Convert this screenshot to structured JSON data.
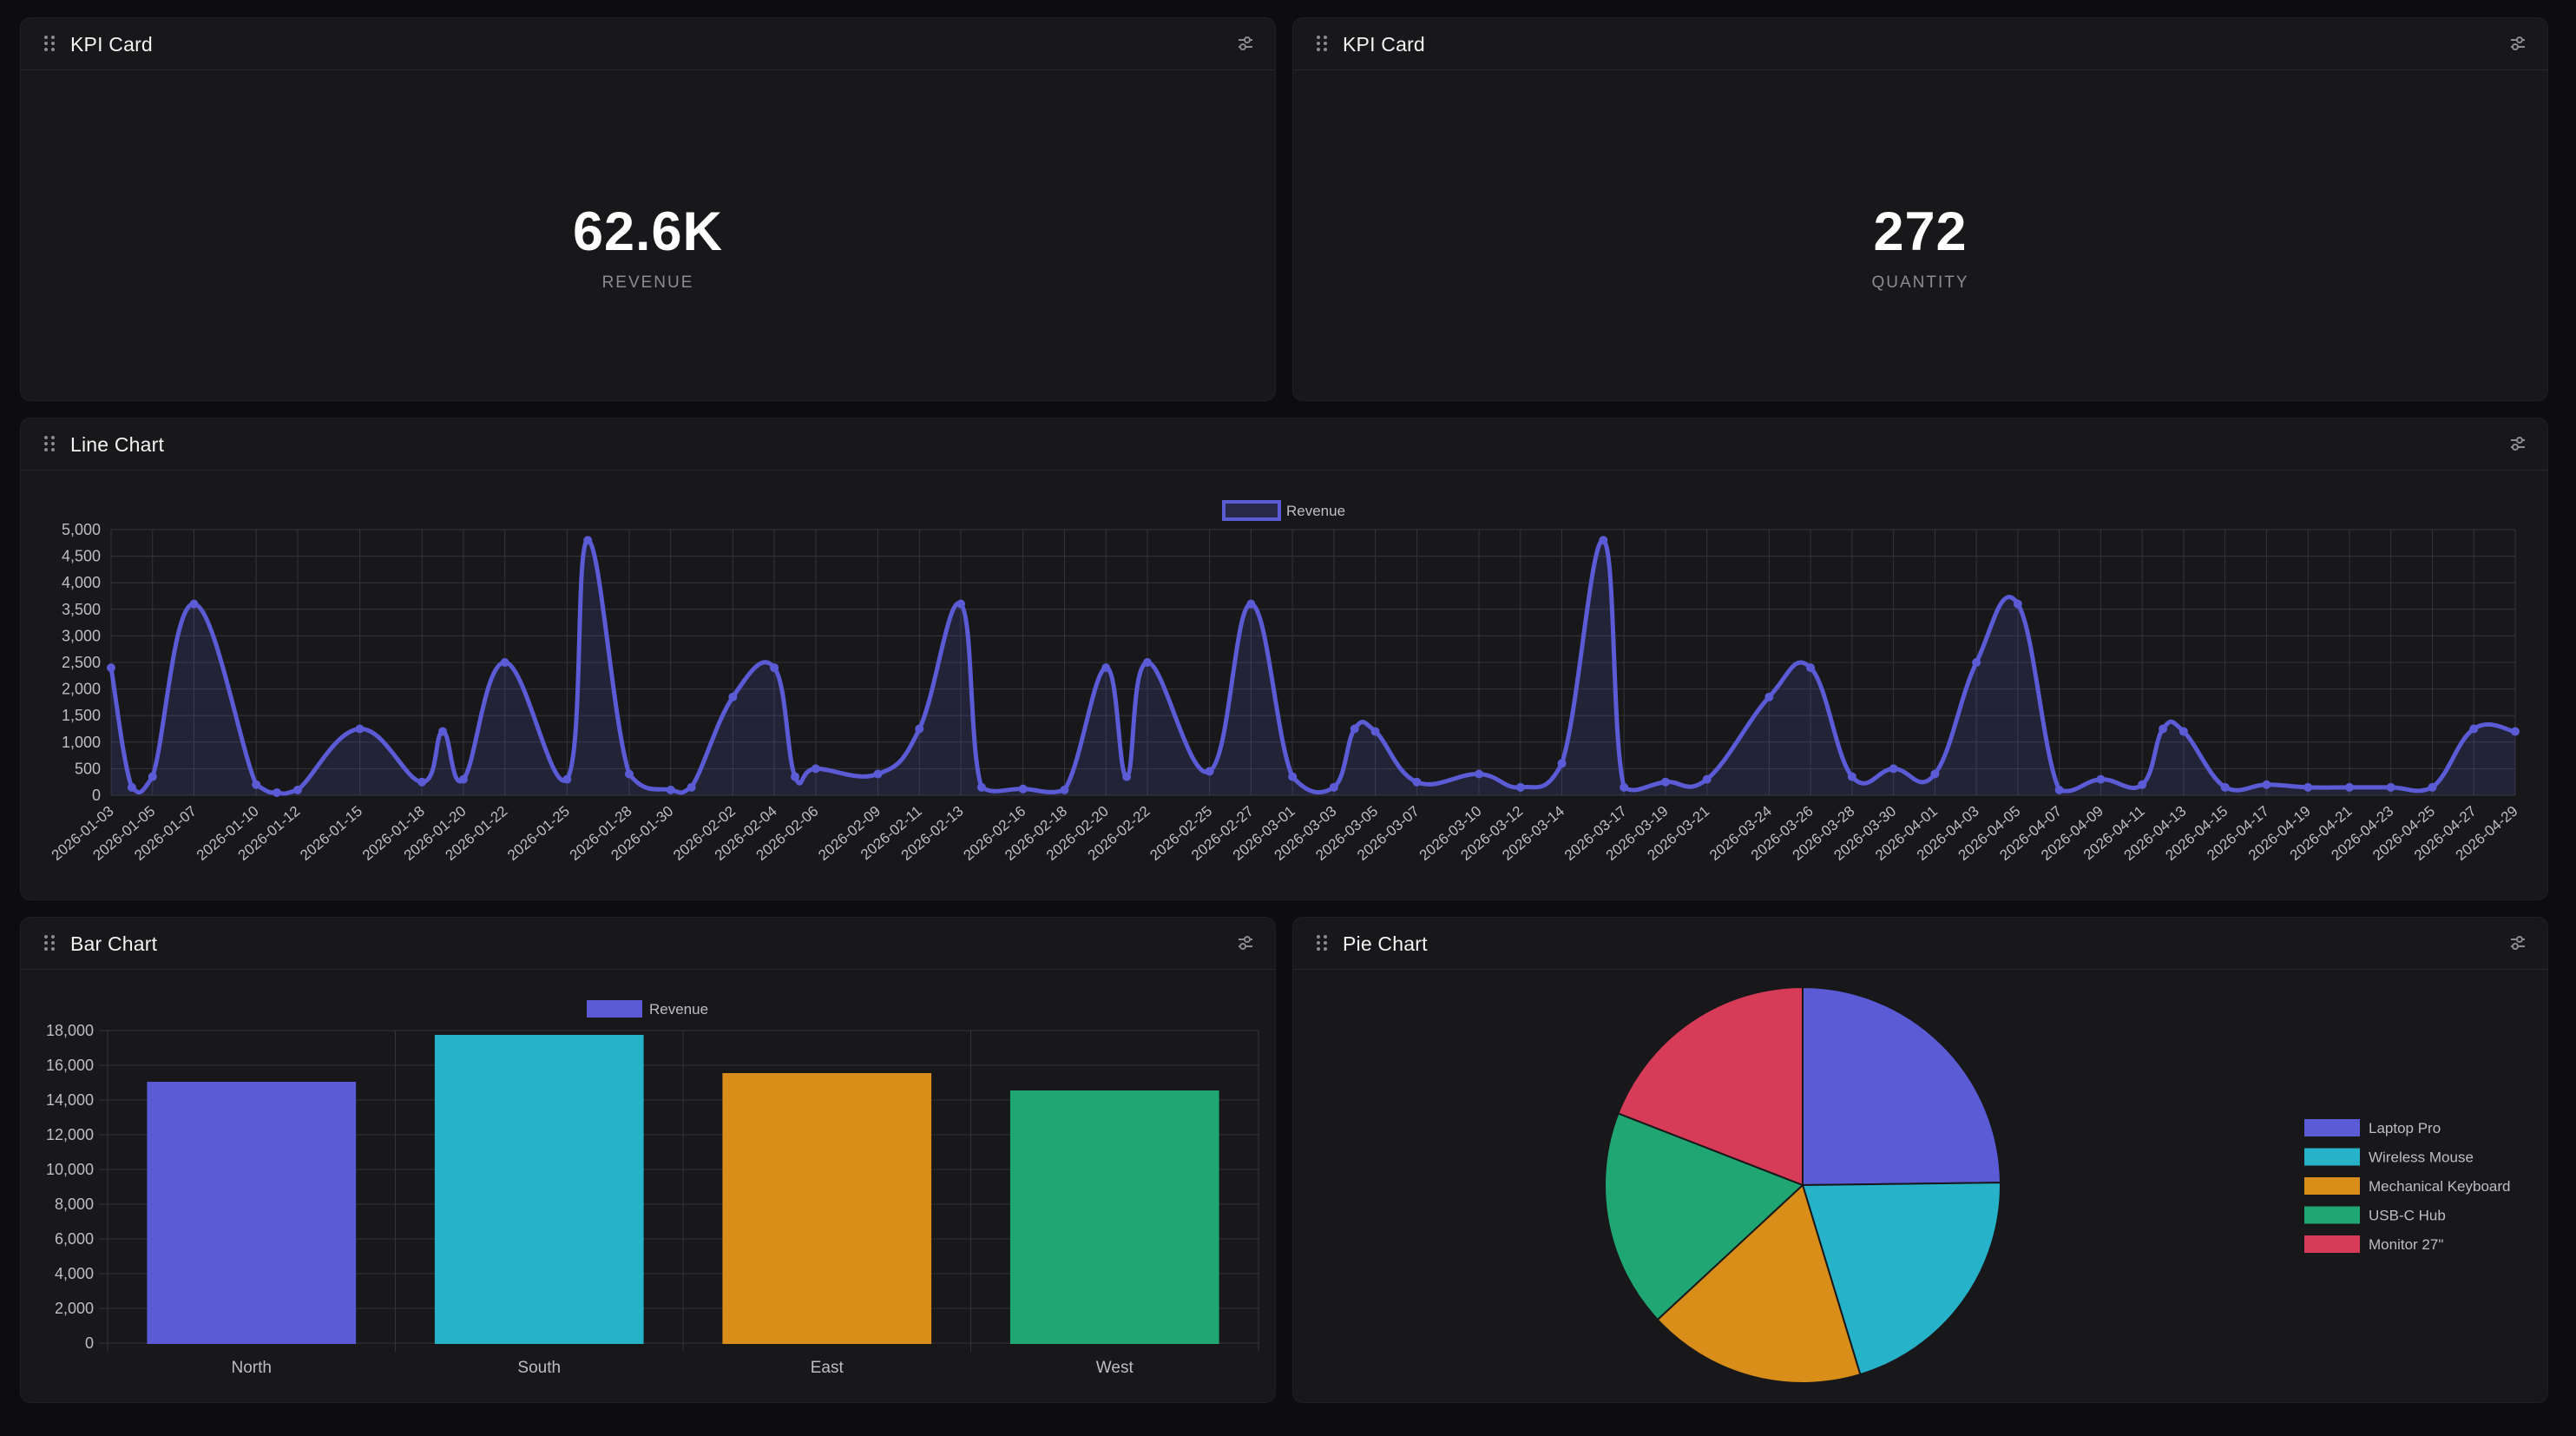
{
  "colors": {
    "background": "#0d0d10",
    "card": "#18181b",
    "accent": "#5b5bd6",
    "grid": "#34343a",
    "axis_text": "#bdbdc4"
  },
  "kpi_cards": [
    {
      "title": "KPI Card",
      "value": "62.6K",
      "label": "REVENUE"
    },
    {
      "title": "KPI Card",
      "value": "272",
      "label": "QUANTITY"
    }
  ],
  "line_panel": {
    "title": "Line Chart"
  },
  "bar_panel": {
    "title": "Bar Chart"
  },
  "pie_panel": {
    "title": "Pie Chart"
  },
  "icons": {
    "drag": "drag-handle-icon",
    "settings": "settings-sliders-icon"
  },
  "chart_data": [
    {
      "type": "line",
      "series": [
        {
          "name": "Revenue",
          "color": "#5b5bd6"
        }
      ],
      "legend": "top-center",
      "ylim": [
        0,
        5000
      ],
      "yticks": [
        "0",
        "500",
        "1,000",
        "1,500",
        "2,000",
        "2,500",
        "3,000",
        "3,500",
        "4,000",
        "4,500",
        "5,000"
      ],
      "x": [
        "2026-01-03",
        "2026-01-04",
        "2026-01-05",
        "2026-01-07",
        "2026-01-10",
        "2026-01-11",
        "2026-01-12",
        "2026-01-15",
        "2026-01-18",
        "2026-01-19",
        "2026-01-20",
        "2026-01-22",
        "2026-01-25",
        "2026-01-26",
        "2026-01-28",
        "2026-01-30",
        "2026-01-31",
        "2026-02-02",
        "2026-02-04",
        "2026-02-05",
        "2026-02-06",
        "2026-02-09",
        "2026-02-11",
        "2026-02-13",
        "2026-02-14",
        "2026-02-16",
        "2026-02-18",
        "2026-02-20",
        "2026-02-21",
        "2026-02-22",
        "2026-02-25",
        "2026-02-27",
        "2026-03-01",
        "2026-03-03",
        "2026-03-04",
        "2026-03-05",
        "2026-03-07",
        "2026-03-10",
        "2026-03-12",
        "2026-03-14",
        "2026-03-16",
        "2026-03-17",
        "2026-03-19",
        "2026-03-21",
        "2026-03-24",
        "2026-03-26",
        "2026-03-28",
        "2026-03-30",
        "2026-04-01",
        "2026-04-03",
        "2026-04-05",
        "2026-04-07",
        "2026-04-09",
        "2026-04-11",
        "2026-04-12",
        "2026-04-13",
        "2026-04-15",
        "2026-04-17",
        "2026-04-19",
        "2026-04-21",
        "2026-04-23",
        "2026-04-25",
        "2026-04-27",
        "2026-04-29"
      ],
      "values": [
        2400,
        150,
        350,
        3600,
        200,
        50,
        100,
        1250,
        250,
        1200,
        300,
        2500,
        300,
        4800,
        400,
        100,
        150,
        1850,
        2400,
        350,
        500,
        400,
        1250,
        3600,
        150,
        120,
        100,
        2400,
        350,
        2500,
        450,
        3600,
        350,
        150,
        1250,
        1200,
        250,
        400,
        150,
        600,
        4800,
        150,
        250,
        300,
        1850,
        2400,
        350,
        500,
        400,
        2500,
        3600,
        100,
        300,
        200,
        1250,
        1200,
        150,
        200,
        150,
        150,
        150,
        150,
        1250,
        1200
      ],
      "xtick_labels": [
        "2026-01-03",
        "2026-01-05",
        "2026-01-07",
        "2026-01-10",
        "2026-01-12",
        "2026-01-15",
        "2026-01-18",
        "2026-01-20",
        "2026-01-22",
        "2026-01-25",
        "2026-01-28",
        "2026-01-30",
        "2026-02-02",
        "2026-02-04",
        "2026-02-06",
        "2026-02-09",
        "2026-02-11",
        "2026-02-13",
        "2026-02-16",
        "2026-02-18",
        "2026-02-20",
        "2026-02-22",
        "2026-02-25",
        "2026-02-27",
        "2026-03-01",
        "2026-03-03",
        "2026-03-05",
        "2026-03-07",
        "2026-03-10",
        "2026-03-12",
        "2026-03-14",
        "2026-03-17",
        "2026-03-19",
        "2026-03-21",
        "2026-03-24",
        "2026-03-26",
        "2026-03-28",
        "2026-03-30",
        "2026-04-01",
        "2026-04-03",
        "2026-04-05",
        "2026-04-07",
        "2026-04-09",
        "2026-04-11",
        "2026-04-13",
        "2026-04-15",
        "2026-04-17",
        "2026-04-19",
        "2026-04-21",
        "2026-04-23",
        "2026-04-25",
        "2026-04-27",
        "2026-04-29"
      ],
      "grid": true
    },
    {
      "type": "bar",
      "series": [
        {
          "name": "Revenue"
        }
      ],
      "legend": "top-center",
      "categories": [
        "North",
        "South",
        "East",
        "West"
      ],
      "values": [
        15000,
        17700,
        15500,
        14500
      ],
      "colors": [
        "#5b5bd6",
        "#26b3c9",
        "#d98e1a",
        "#1fa673"
      ],
      "ylim": [
        0,
        18000
      ],
      "yticks": [
        "0",
        "2,000",
        "4,000",
        "6,000",
        "8,000",
        "10,000",
        "12,000",
        "14,000",
        "16,000",
        "18,000"
      ],
      "grid": true
    },
    {
      "type": "pie",
      "legend": "right",
      "labels": [
        "Laptop Pro",
        "Wireless Mouse",
        "Mechanical Keyboard",
        "USB-C Hub",
        "Monitor 27\""
      ],
      "values": [
        24.8,
        20.5,
        17.8,
        17.8,
        19.1
      ],
      "colors": [
        "#5b5bd6",
        "#26b3c9",
        "#d98e1a",
        "#1fa673",
        "#d63c58"
      ]
    }
  ]
}
